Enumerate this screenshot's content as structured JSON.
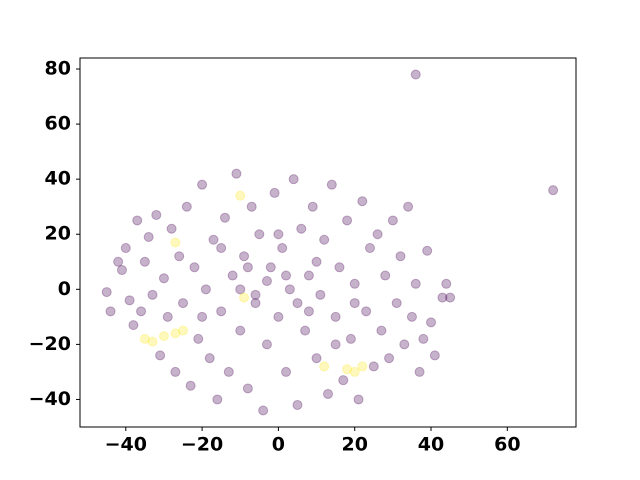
{
  "chart_data": {
    "type": "scatter",
    "series": [
      {
        "color": "#440154",
        "x": [
          -45,
          -44,
          -42,
          -41,
          -40,
          -39,
          -38,
          -37,
          -36,
          -35,
          -34,
          -33,
          -32,
          -31,
          -30,
          -29,
          -28,
          -27,
          -26,
          -25,
          -24,
          -23,
          -22,
          -21,
          -20,
          -19,
          -18,
          -17,
          -16,
          -15,
          -14,
          -13,
          -12,
          -11,
          -10,
          -9,
          -8,
          -7,
          -6,
          -5,
          -4,
          -3,
          -2,
          -1,
          0,
          1,
          2,
          3,
          4,
          5,
          6,
          7,
          8,
          9,
          10,
          11,
          12,
          13,
          14,
          15,
          16,
          17,
          18,
          19,
          20,
          21,
          22,
          23,
          24,
          25,
          26,
          27,
          28,
          29,
          30,
          31,
          32,
          33,
          34,
          35,
          36,
          37,
          38,
          39,
          40,
          41,
          43,
          44,
          45,
          -3,
          2,
          -6,
          5,
          0,
          -10,
          10,
          -15,
          15,
          -20,
          20,
          8,
          -8,
          36,
          72
        ],
        "values": [
          -1,
          -8,
          10,
          7,
          15,
          -4,
          -13,
          25,
          -8,
          10,
          19,
          -2,
          27,
          -24,
          4,
          -10,
          22,
          -30,
          12,
          -5,
          30,
          -35,
          8,
          -18,
          38,
          0,
          -25,
          18,
          -40,
          -8,
          26,
          -30,
          5,
          42,
          -15,
          12,
          -36,
          30,
          -5,
          20,
          -44,
          -20,
          8,
          35,
          -10,
          15,
          -30,
          0,
          40,
          -42,
          22,
          -15,
          5,
          30,
          -25,
          -2,
          18,
          -38,
          38,
          -10,
          8,
          -33,
          25,
          -18,
          2,
          -40,
          32,
          -8,
          15,
          -28,
          20,
          -15,
          5,
          -25,
          25,
          -5,
          12,
          -20,
          30,
          -10,
          2,
          -30,
          -18,
          14,
          -12,
          -24,
          -3,
          2,
          -3,
          3,
          5,
          -2,
          -5,
          20,
          0,
          10,
          15,
          -20,
          -10,
          -5,
          -8,
          8,
          78,
          36
        ]
      },
      {
        "color": "#fde725",
        "x": [
          -10,
          -27,
          -35,
          -33,
          -30,
          -25,
          -27,
          12,
          20,
          22,
          18,
          -9
        ],
        "values": [
          34,
          17,
          -18,
          -19,
          -17,
          -15,
          -16,
          -28,
          -30,
          -28,
          -29,
          -3
        ]
      }
    ],
    "opacity": 0.3,
    "xlim": [
      -52,
      78
    ],
    "ylim": [
      -50,
      84
    ],
    "xticks": [
      {
        "value": -40,
        "label": "−40"
      },
      {
        "value": -20,
        "label": "−20"
      },
      0,
      20,
      40,
      60
    ],
    "yticks": [
      {
        "value": -40,
        "label": "−40"
      },
      {
        "value": -20,
        "label": "−20"
      },
      0,
      20,
      40,
      60,
      80
    ],
    "grid": false
  }
}
